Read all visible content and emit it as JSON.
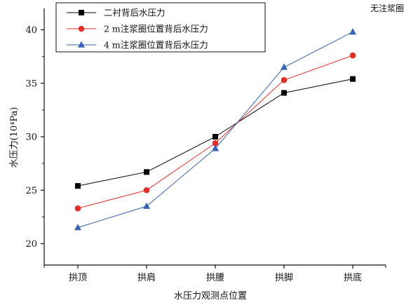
{
  "chart_data": {
    "type": "line",
    "title": "",
    "annotation": "无注浆圈",
    "xlabel": "水压力观测点位置",
    "ylabel": "水压力(10⁴Pa)",
    "categories": [
      "拱顶",
      "拱肩",
      "拱腰",
      "拱脚",
      "拱底"
    ],
    "ylim": [
      18,
      42
    ],
    "yticks": [
      20,
      25,
      30,
      35,
      40
    ],
    "grid": false,
    "legend_position": "top-left",
    "series": [
      {
        "name": "二衬背后水压力",
        "color": "#000000",
        "marker": "square",
        "values": [
          25.4,
          26.7,
          30.0,
          34.1,
          35.4
        ]
      },
      {
        "name": "2 m注浆圈位置背后水压力",
        "color": "#e0302a",
        "marker": "circle",
        "values": [
          23.3,
          25.0,
          29.4,
          35.3,
          37.6
        ]
      },
      {
        "name": "4 m注浆圈位置背后水压力",
        "color": "#3a63b0",
        "marker": "triangle",
        "values": [
          21.5,
          23.5,
          28.9,
          36.5,
          39.8
        ]
      }
    ]
  }
}
